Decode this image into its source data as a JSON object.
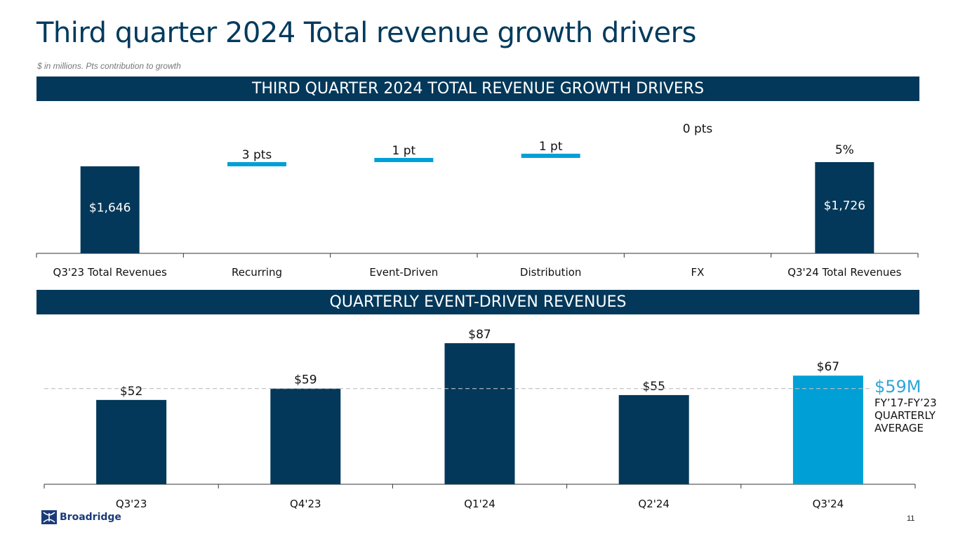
{
  "page": {
    "title": "Third quarter 2024 Total revenue growth drivers",
    "subtitle": "$ in millions. Pts contribution to growth",
    "page_number": "11",
    "logo_text": "Broadridge",
    "logo_icon": "broadridge-logo-icon"
  },
  "colors": {
    "navy": "#03385a",
    "accent": "#00a0d6",
    "avg_label": "#2ea6d8",
    "dashed_line": "#bfbfbf"
  },
  "chart_data": [
    {
      "type": "bar",
      "subtype": "waterfall",
      "title": "THIRD QUARTER 2024 TOTAL REVENUE GROWTH DRIVERS",
      "categories": [
        "Q3'23 Total Revenues",
        "Recurring",
        "Event-Driven",
        "Distribution",
        "FX",
        "Q3'24 Total Revenues"
      ],
      "values_usd_m": [
        1646,
        null,
        null,
        null,
        null,
        1726
      ],
      "contribution_pts": [
        null,
        3,
        1,
        1,
        0,
        null
      ],
      "labels": [
        "$1,646",
        "3 pts",
        "1 pt",
        "1 pt",
        "0 pts",
        "$1,726"
      ],
      "top_label": {
        "category": "Q3'24 Total Revenues",
        "text": "5%"
      },
      "bar_kinds": [
        "total",
        "delta",
        "delta",
        "delta",
        "delta",
        "total"
      ],
      "legend": "none",
      "grid": false
    },
    {
      "type": "bar",
      "title": "QUARTERLY EVENT-DRIVEN REVENUES",
      "categories": [
        "Q3'23",
        "Q4'23",
        "Q1'24",
        "Q2'24",
        "Q3'24"
      ],
      "values": [
        52,
        59,
        87,
        55,
        67
      ],
      "labels": [
        "$52",
        "$59",
        "$87",
        "$55",
        "$67"
      ],
      "highlight_index": 4,
      "reference_line": {
        "value": 59,
        "label": "$59M",
        "description": "FY’17-FY’23\nQUARTERLY\nAVERAGE",
        "style": "dashed"
      },
      "ylim": [
        0,
        100
      ],
      "legend": "none",
      "grid": false
    }
  ]
}
